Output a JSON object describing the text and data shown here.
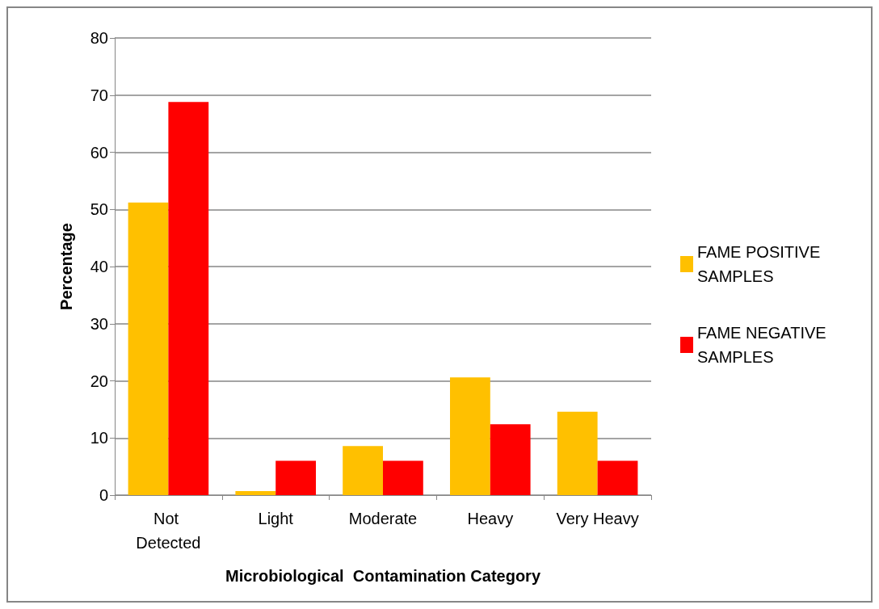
{
  "chart_data": {
    "type": "bar",
    "xlabel": "Microbiological  Contamination Category",
    "ylabel": "Percentage",
    "categories": [
      "Not Detected",
      "Light",
      "Moderate",
      "Heavy",
      "Very Heavy"
    ],
    "series": [
      {
        "name": "FAME POSITIVE SAMPLES",
        "color": "#ffc000",
        "values": [
          51.2,
          0.7,
          8.6,
          20.6,
          14.6
        ]
      },
      {
        "name": "FAME NEGATIVE SAMPLES",
        "color": "#ff0000",
        "values": [
          68.8,
          6.0,
          6.0,
          12.4,
          6.0
        ]
      }
    ],
    "ylim": [
      0,
      80
    ],
    "yticks": [
      0,
      10,
      20,
      30,
      40,
      50,
      60,
      70,
      80
    ],
    "grid": "y",
    "legend": "right"
  }
}
